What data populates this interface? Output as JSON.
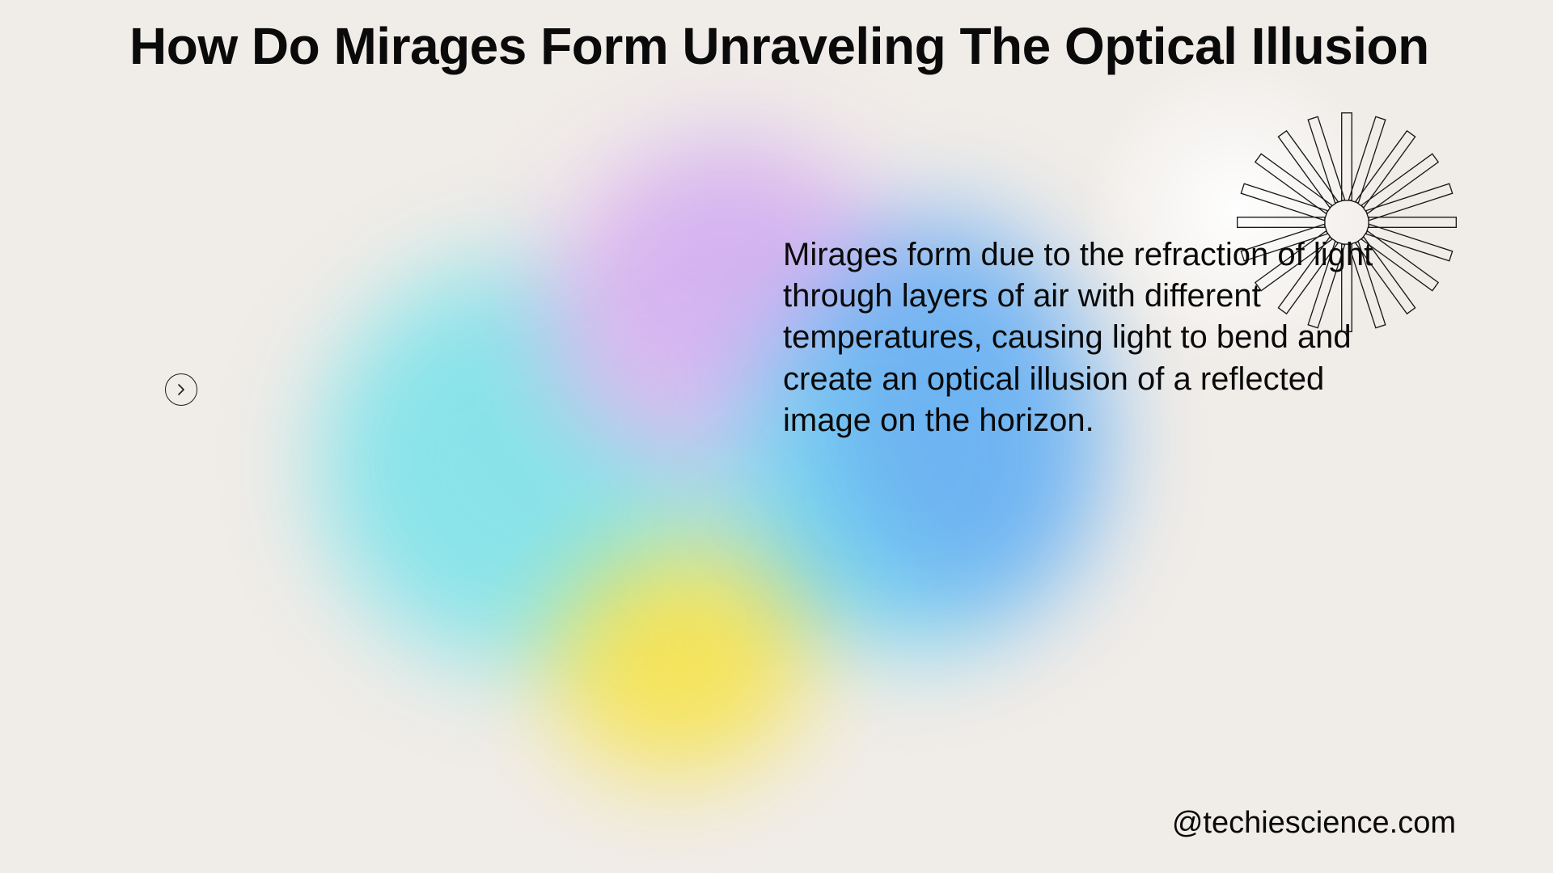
{
  "title": "How Do Mirages Form Unraveling The Optical Illusion",
  "body": "Mirages form due to the refraction of light through layers of air with different temperatures, causing light to bend and create an optical illusion of a reflected image on the horizon.",
  "attribution": "@techiescience.com",
  "colors": {
    "background": "#f0ece8",
    "text": "#0a0a0a",
    "blob_cyan": "#7ee3ea",
    "blob_cyan2": "#6ad4f0",
    "blob_blue": "#5fa8f5",
    "blob_pink": "#e9b0f0",
    "blob_violet": "#c9a6f2",
    "blob_yellow": "#f6e34b",
    "starburst_stroke": "#1a1a1a",
    "arrow_stroke": "#1a1a1a"
  },
  "typography": {
    "title_fontsize": 64,
    "title_weight": 800,
    "body_fontsize": 40,
    "body_weight": 500,
    "attribution_fontsize": 38
  },
  "starburst": {
    "ray_count": 20,
    "inner_radius": 28,
    "outer_radius": 140,
    "ray_width": 13,
    "stroke_width": 1.4
  },
  "arrow_button": {
    "diameter": 40,
    "stroke_width": 1.5
  }
}
